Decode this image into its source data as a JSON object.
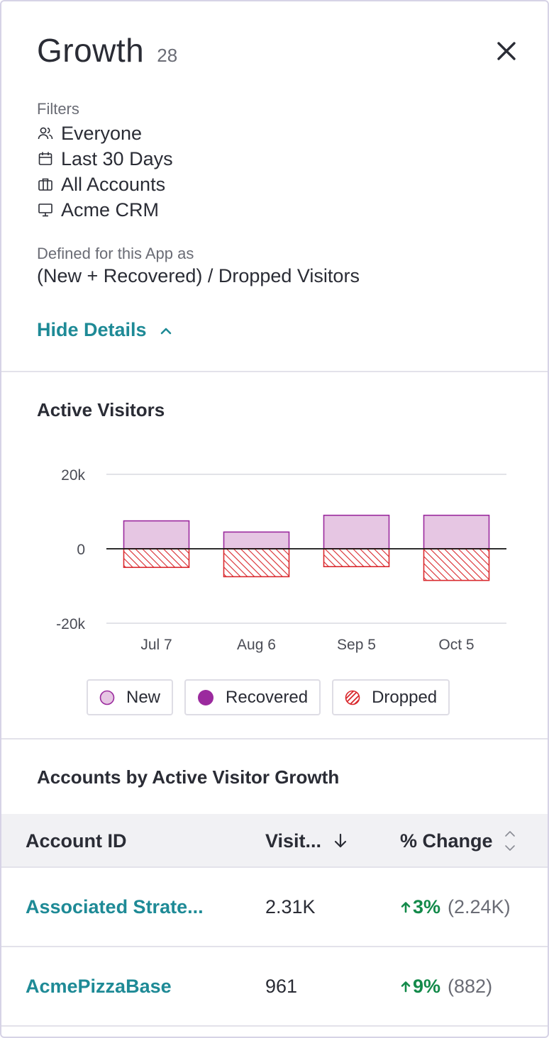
{
  "header": {
    "title": "Growth",
    "count": "28"
  },
  "filters": {
    "label": "Filters",
    "items": [
      {
        "icon": "users-icon",
        "label": "Everyone"
      },
      {
        "icon": "calendar-icon",
        "label": "Last 30 Days"
      },
      {
        "icon": "briefcase-icon",
        "label": "All Accounts"
      },
      {
        "icon": "monitor-icon",
        "label": "Acme CRM"
      }
    ]
  },
  "definition": {
    "label": "Defined for this App as",
    "formula": "(New + Recovered) / Dropped Visitors"
  },
  "hide_details": {
    "label": "Hide Details",
    "icon": "chevron-up-icon"
  },
  "active_visitors": {
    "title": "Active Visitors",
    "legend": [
      {
        "label": "New",
        "icon": "new-swatch-icon"
      },
      {
        "label": "Recovered",
        "icon": "recovered-swatch-icon"
      },
      {
        "label": "Dropped",
        "icon": "dropped-swatch-icon"
      }
    ]
  },
  "chart_data": {
    "type": "bar",
    "categories": [
      "Jul 7",
      "Aug 6",
      "Sep 5",
      "Oct 5"
    ],
    "series": [
      {
        "name": "New",
        "values": [
          7500,
          4500,
          9000,
          9000
        ]
      },
      {
        "name": "Recovered",
        "values": [
          0,
          0,
          0,
          0
        ]
      },
      {
        "name": "Dropped",
        "values": [
          -5000,
          -7500,
          -4800,
          -8500
        ]
      }
    ],
    "ylim": [
      -20000,
      20000
    ],
    "yticks": [
      {
        "value": 20000,
        "label": "20k"
      },
      {
        "value": 0,
        "label": "0"
      },
      {
        "value": -20000,
        "label": "-20k"
      }
    ],
    "colors": {
      "new_fill": "#e6c6e3",
      "new_stroke": "#9b2a9e",
      "recovered": "#9b2a9e",
      "dropped": "#d9282d"
    },
    "grid": true,
    "legend_placement": "bottom"
  },
  "accounts": {
    "title": "Accounts by Active Visitor Growth",
    "columns": {
      "account_id": "Account ID",
      "visitors": "Visit...",
      "change": "% Change"
    },
    "rows": [
      {
        "account": "Associated Strate...",
        "visitors": "2.31K",
        "change": "3%",
        "previous": "(2.24K)"
      },
      {
        "account": "AcmePizzaBase",
        "visitors": "961",
        "change": "9%",
        "previous": "(882)"
      }
    ]
  },
  "colors": {
    "accent": "#1e8a96",
    "positive": "#138a4a",
    "text": "#2a2c35",
    "muted": "#6a6c75"
  }
}
